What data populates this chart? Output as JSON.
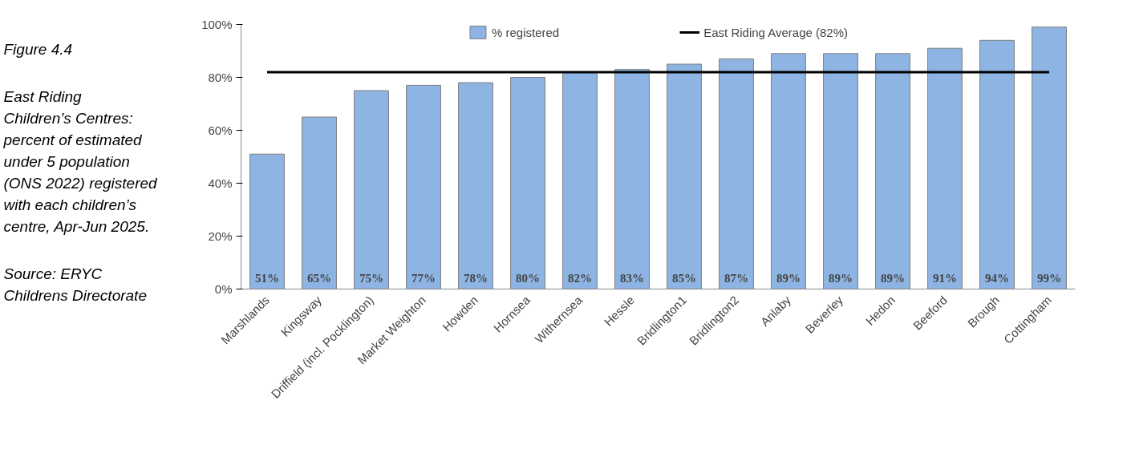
{
  "chart_data": {
    "type": "bar",
    "title": "Figure 4.4",
    "subtitle": "East Riding Children’s Centres: percent of estimated under 5 population (ONS 2022) registered with each children’s centre, Apr-Jun 2025.",
    "annotations": [
      "Source: ERYC Childrens Directorate"
    ],
    "categories": [
      "Marshlands",
      "Kingsway",
      "Driffield (incl. Pocklington)",
      "Market Weighton",
      "Howden",
      "Hornsea",
      "Withernsea",
      "Hessle",
      "Bridlington1",
      "Bridlington2",
      "Anlaby",
      "Beverley",
      "Hedon",
      "Beeford",
      "Brough",
      "Cottingham"
    ],
    "series": [
      {
        "name": "% registered",
        "color": "#8db4e2",
        "values": [
          51,
          65,
          75,
          77,
          78,
          80,
          82,
          83,
          85,
          87,
          89,
          89,
          89,
          91,
          94,
          99
        ],
        "value_labels": [
          "51%",
          "65%",
          "75%",
          "77%",
          "78%",
          "80%",
          "82%",
          "83%",
          "85%",
          "87%",
          "89%",
          "89%",
          "89%",
          "91%",
          "94%",
          "99%"
        ]
      }
    ],
    "ref_lines": [
      {
        "axis": "y",
        "value": 82,
        "label": "East Riding Average (82%)",
        "color": "#000000",
        "line_style": "solid"
      }
    ],
    "ylim": [
      0,
      100
    ],
    "yticks": [
      {
        "value": 0,
        "label": "0%"
      },
      {
        "value": 20,
        "label": "20%"
      },
      {
        "value": 40,
        "label": "40%"
      },
      {
        "value": 60,
        "label": "60%"
      },
      {
        "value": 80,
        "label": "80%"
      },
      {
        "value": 100,
        "label": "100%"
      }
    ],
    "grid": false,
    "legend": "top"
  }
}
